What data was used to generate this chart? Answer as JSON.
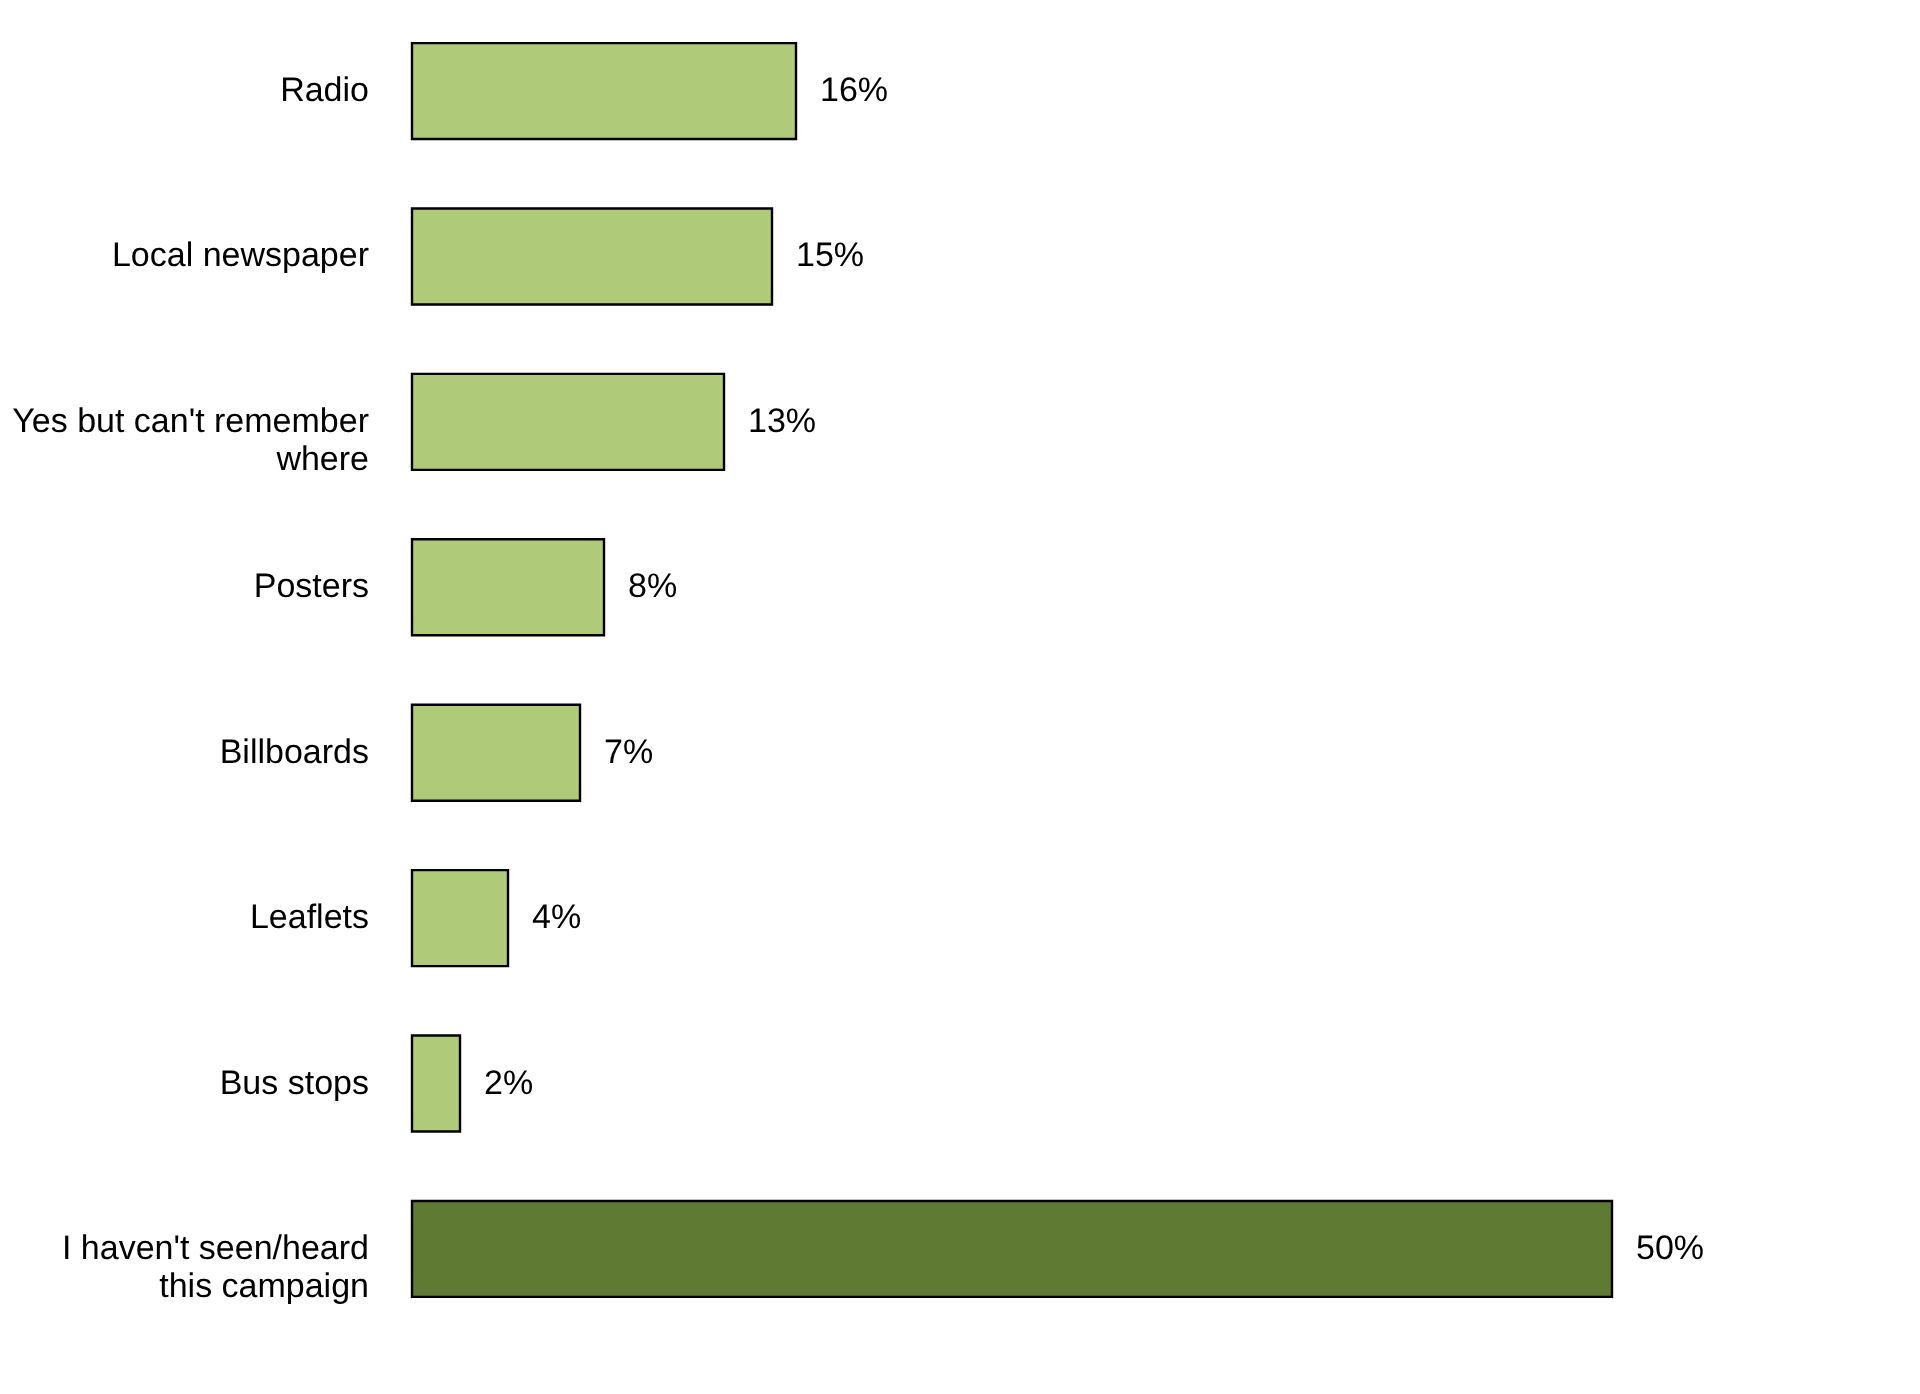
{
  "chart_data": {
    "type": "bar",
    "orientation": "horizontal",
    "categories": [
      "Radio",
      "Local newspaper",
      "Yes but can't remember where",
      "Posters",
      "Billboards",
      "Leaflets",
      "Bus stops",
      "I haven't seen/heard this campaign"
    ],
    "values": [
      16,
      15,
      13,
      8,
      7,
      4,
      2,
      50
    ],
    "colors": [
      "#afcb7a",
      "#afcb7a",
      "#afcb7a",
      "#afcb7a",
      "#afcb7a",
      "#afcb7a",
      "#afcb7a",
      "#5f7a32"
    ],
    "value_labels": [
      "16%",
      "15%",
      "13%",
      "8%",
      "7%",
      "4%",
      "2%",
      "50%"
    ],
    "grid": false
  }
}
